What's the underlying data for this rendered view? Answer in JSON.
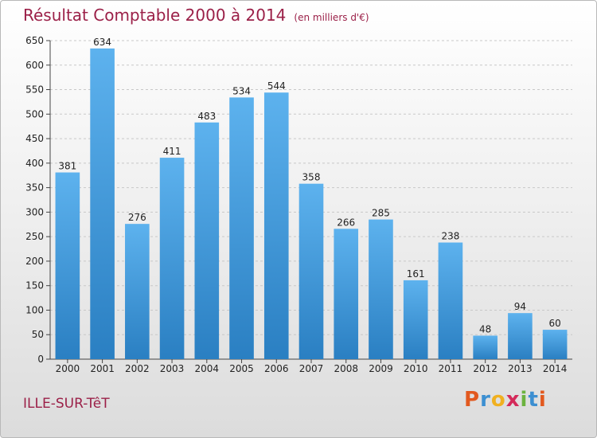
{
  "title": "Résultat Comptable 2000 à 2014",
  "unit": "(en milliers d'€)",
  "commune": "ILLE-SUR-TêT",
  "logo": {
    "text": "Proxiti",
    "letters": [
      {
        "c": "P",
        "color": "#e2591f"
      },
      {
        "c": "r",
        "color": "#3c8fd1"
      },
      {
        "c": "o",
        "color": "#f0b020"
      },
      {
        "c": "x",
        "color": "#d42a5a"
      },
      {
        "c": "i",
        "color": "#6cb33f"
      },
      {
        "c": "t",
        "color": "#3c8fd1"
      },
      {
        "c": "i",
        "color": "#e2591f"
      }
    ]
  },
  "colors": {
    "bar_top": "#5db2ee",
    "bar_bottom": "#2a7fc2",
    "title": "#9b2048"
  },
  "chart_data": {
    "type": "bar",
    "categories": [
      "2000",
      "2001",
      "2002",
      "2003",
      "2004",
      "2005",
      "2006",
      "2007",
      "2008",
      "2009",
      "2010",
      "2011",
      "2012",
      "2013",
      "2014"
    ],
    "values": [
      381,
      634,
      276,
      411,
      483,
      534,
      544,
      358,
      266,
      285,
      161,
      238,
      48,
      94,
      60
    ],
    "ylim": [
      0,
      650
    ],
    "yticks": [
      0,
      50,
      100,
      150,
      200,
      250,
      300,
      350,
      400,
      450,
      500,
      550,
      600,
      650
    ],
    "grid": true
  }
}
